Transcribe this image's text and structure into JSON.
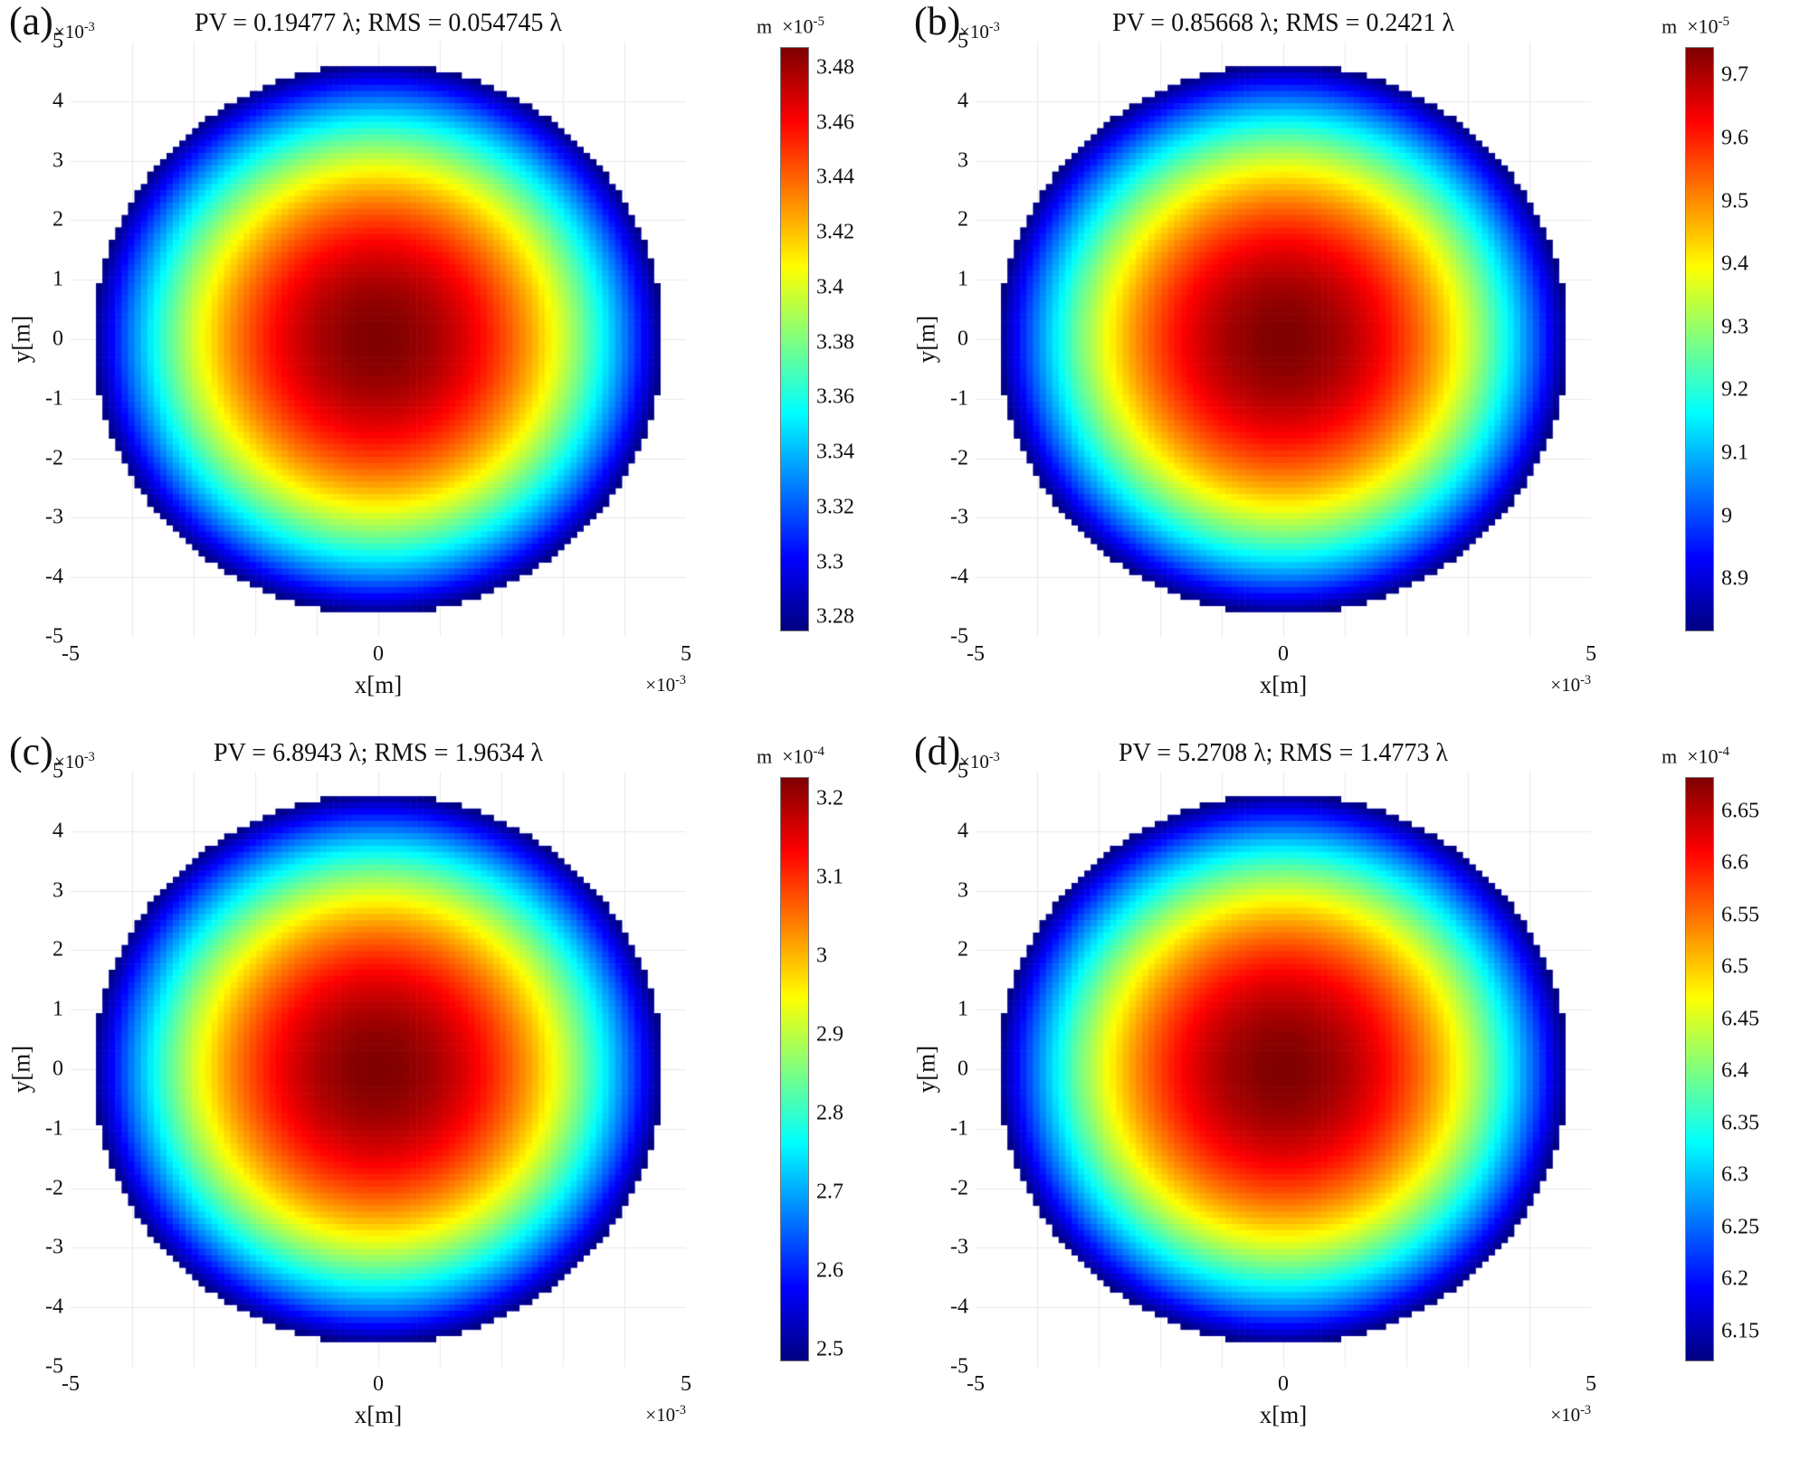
{
  "figure": {
    "panels": [
      {
        "label": "(a)",
        "title": "PV = 0.19477 λ; RMS = 0.054745 λ",
        "xlabel": "x[m]",
        "ylabel": "y[m]",
        "axis_exponent": {
          "base": "×10",
          "power": "-3"
        },
        "x_ticks": [
          "-5",
          "0",
          "5"
        ],
        "y_ticks": [
          "5",
          "4",
          "3",
          "2",
          "1",
          "0",
          "-1",
          "-2",
          "-3",
          "-4",
          "-5"
        ],
        "colorbar": {
          "unit": "m",
          "exponent": {
            "base": "×10",
            "power": "-5"
          },
          "ticks": [
            "3.48",
            "3.46",
            "3.44",
            "3.42",
            "3.4",
            "3.38",
            "3.36",
            "3.34",
            "3.32",
            "3.3",
            "3.28"
          ],
          "min": 3.2755,
          "max": 3.4875
        }
      },
      {
        "label": "(b)",
        "title": "PV = 0.85668 λ; RMS = 0.2421 λ",
        "xlabel": "x[m]",
        "ylabel": "y[m]",
        "axis_exponent": {
          "base": "×10",
          "power": "-3"
        },
        "x_ticks": [
          "-5",
          "0",
          "5"
        ],
        "y_ticks": [
          "5",
          "4",
          "3",
          "2",
          "1",
          "0",
          "-1",
          "-2",
          "-3",
          "-4",
          "-5"
        ],
        "colorbar": {
          "unit": "m",
          "exponent": {
            "base": "×10",
            "power": "-5"
          },
          "ticks": [
            "9.7",
            "9.6",
            "9.5",
            "9.4",
            "9.3",
            "9.2",
            "9.1",
            "9",
            "8.9"
          ],
          "min": 8.82,
          "max": 9.745
        }
      },
      {
        "label": "(c)",
        "title": "PV = 6.8943 λ; RMS = 1.9634 λ",
        "xlabel": "x[m]",
        "ylabel": "y[m]",
        "axis_exponent": {
          "base": "×10",
          "power": "-3"
        },
        "x_ticks": [
          "-5",
          "0",
          "5"
        ],
        "y_ticks": [
          "5",
          "4",
          "3",
          "2",
          "1",
          "0",
          "-1",
          "-2",
          "-3",
          "-4",
          "-5"
        ],
        "colorbar": {
          "unit": "m",
          "exponent": {
            "base": "×10",
            "power": "-4"
          },
          "ticks": [
            "3.2",
            "3.1",
            "3",
            "2.9",
            "2.8",
            "2.7",
            "2.6",
            "2.5"
          ],
          "min": 2.487,
          "max": 3.228
        }
      },
      {
        "label": "(d)",
        "title": "PV = 5.2708 λ; RMS = 1.4773 λ",
        "xlabel": "x[m]",
        "ylabel": "y[m]",
        "axis_exponent": {
          "base": "×10",
          "power": "-3"
        },
        "x_ticks": [
          "-5",
          "0",
          "5"
        ],
        "y_ticks": [
          "5",
          "4",
          "3",
          "2",
          "1",
          "0",
          "-1",
          "-2",
          "-3",
          "-4",
          "-5"
        ],
        "colorbar": {
          "unit": "m",
          "exponent": {
            "base": "×10",
            "power": "-4"
          },
          "ticks": [
            "6.65",
            "6.6",
            "6.55",
            "6.5",
            "6.45",
            "6.4",
            "6.35",
            "6.3",
            "6.25",
            "6.2",
            "6.15"
          ],
          "min": 6.123,
          "max": 6.683
        }
      }
    ]
  },
  "chart_data": [
    {
      "type": "heatmap",
      "panel": "(a)",
      "title": "PV = 0.19477 λ; RMS = 0.054745 λ",
      "pv_wavelengths": 0.19477,
      "rms_wavelengths": 0.054745,
      "xlabel": "x[m]",
      "ylabel": "y[m]",
      "x_range_m": [
        -0.005,
        0.005
      ],
      "y_range_m": [
        -0.005,
        0.005
      ],
      "x_tick_values": [
        -5,
        0,
        5
      ],
      "y_tick_values": [
        5,
        4,
        3,
        2,
        1,
        0,
        -1,
        -2,
        -3,
        -4,
        -5
      ],
      "axis_scale": 0.001,
      "aperture_radius_m": 0.0046,
      "colormap": "jet",
      "value_unit": "m",
      "value_scale": 1e-05,
      "colorbar_ticks": [
        3.48,
        3.46,
        3.44,
        3.42,
        3.4,
        3.38,
        3.36,
        3.34,
        3.32,
        3.3,
        3.28
      ],
      "value_range": [
        3.2755,
        3.4875
      ],
      "center_value": 3.4875,
      "edge_value": 3.2755,
      "surface_profile": "rotationally symmetric; maximum at center, quadratic falloff to edge",
      "grid": true,
      "legend": "colorbar right"
    },
    {
      "type": "heatmap",
      "panel": "(b)",
      "title": "PV = 0.85668 λ; RMS = 0.2421 λ",
      "pv_wavelengths": 0.85668,
      "rms_wavelengths": 0.2421,
      "xlabel": "x[m]",
      "ylabel": "y[m]",
      "x_range_m": [
        -0.005,
        0.005
      ],
      "y_range_m": [
        -0.005,
        0.005
      ],
      "x_tick_values": [
        -5,
        0,
        5
      ],
      "y_tick_values": [
        5,
        4,
        3,
        2,
        1,
        0,
        -1,
        -2,
        -3,
        -4,
        -5
      ],
      "axis_scale": 0.001,
      "aperture_radius_m": 0.0046,
      "colormap": "jet",
      "value_unit": "m",
      "value_scale": 1e-05,
      "colorbar_ticks": [
        9.7,
        9.6,
        9.5,
        9.4,
        9.3,
        9.2,
        9.1,
        9,
        8.9
      ],
      "value_range": [
        8.82,
        9.745
      ],
      "center_value": 9.745,
      "edge_value": 8.82,
      "surface_profile": "rotationally symmetric; maximum at center, quadratic falloff to edge",
      "grid": true,
      "legend": "colorbar right"
    },
    {
      "type": "heatmap",
      "panel": "(c)",
      "title": "PV = 6.8943 λ; RMS = 1.9634 λ",
      "pv_wavelengths": 6.8943,
      "rms_wavelengths": 1.9634,
      "xlabel": "x[m]",
      "ylabel": "y[m]",
      "x_range_m": [
        -0.005,
        0.005
      ],
      "y_range_m": [
        -0.005,
        0.005
      ],
      "x_tick_values": [
        -5,
        0,
        5
      ],
      "y_tick_values": [
        5,
        4,
        3,
        2,
        1,
        0,
        -1,
        -2,
        -3,
        -4,
        -5
      ],
      "axis_scale": 0.001,
      "aperture_radius_m": 0.0046,
      "colormap": "jet",
      "value_unit": "m",
      "value_scale": 0.0001,
      "colorbar_ticks": [
        3.2,
        3.1,
        3,
        2.9,
        2.8,
        2.7,
        2.6,
        2.5
      ],
      "value_range": [
        2.487,
        3.228
      ],
      "center_value": 3.228,
      "edge_value": 2.487,
      "surface_profile": "rotationally symmetric; maximum at center, quadratic falloff to edge",
      "grid": true,
      "legend": "colorbar right"
    },
    {
      "type": "heatmap",
      "panel": "(d)",
      "title": "PV = 5.2708 λ; RMS = 1.4773 λ",
      "pv_wavelengths": 5.2708,
      "rms_wavelengths": 1.4773,
      "xlabel": "x[m]",
      "ylabel": "y[m]",
      "x_range_m": [
        -0.005,
        0.005
      ],
      "y_range_m": [
        -0.005,
        0.005
      ],
      "x_tick_values": [
        -5,
        0,
        5
      ],
      "y_tick_values": [
        5,
        4,
        3,
        2,
        1,
        0,
        -1,
        -2,
        -3,
        -4,
        -5
      ],
      "axis_scale": 0.001,
      "aperture_radius_m": 0.0046,
      "colormap": "jet",
      "value_unit": "m",
      "value_scale": 0.0001,
      "colorbar_ticks": [
        6.65,
        6.6,
        6.55,
        6.5,
        6.45,
        6.4,
        6.35,
        6.3,
        6.25,
        6.2,
        6.15
      ],
      "value_range": [
        6.123,
        6.683
      ],
      "center_value": 6.683,
      "edge_value": 6.123,
      "surface_profile": "rotationally symmetric; maximum at center, quadratic falloff to edge",
      "grid": true,
      "legend": "colorbar right"
    }
  ]
}
